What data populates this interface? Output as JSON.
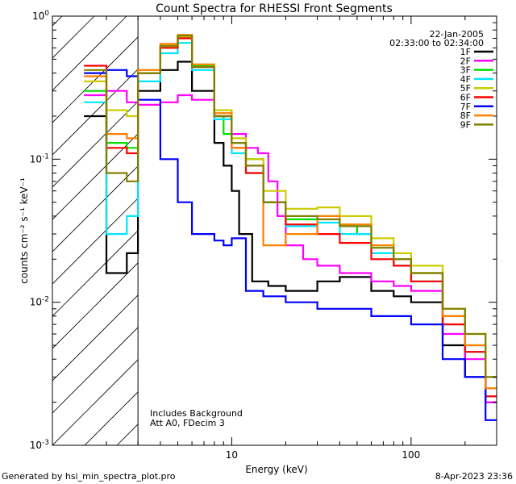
{
  "chart_data": {
    "type": "line",
    "title": "Count Spectra for RHESSI Front Segments",
    "xlabel": "Energy (keV)",
    "ylabel": "counts cm⁻² s⁻¹ keV⁻¹",
    "x_scale": "log",
    "y_scale": "log",
    "xlim": [
      1.0,
      300
    ],
    "ylim": [
      0.001,
      1.0
    ],
    "x_ticks": [
      {
        "value": 10,
        "label": "10"
      },
      {
        "value": 100,
        "label": "100"
      }
    ],
    "y_ticks": [
      {
        "value": 0.001,
        "base": "10",
        "exp": "-3"
      },
      {
        "value": 0.01,
        "base": "10",
        "exp": "-2"
      },
      {
        "value": 0.1,
        "base": "10",
        "exp": "-1"
      },
      {
        "value": 1,
        "base": "10",
        "exp": "0"
      }
    ],
    "grid": false,
    "legend_position": "top-right",
    "date": "22-Jan-2005",
    "time_range": "02:33:00 to 02:34:00",
    "shaded_region": {
      "from": 1.0,
      "to": 3.0,
      "style": "hatched"
    },
    "annotations": [
      "Includes Background",
      "Att A0, FDecim 3"
    ],
    "series": [
      {
        "name": "1F",
        "color": "#000000",
        "points": [
          [
            1.5,
            0.2
          ],
          [
            2,
            0.016
          ],
          [
            2.6,
            0.022
          ],
          [
            3,
            0.3
          ],
          [
            4,
            0.42
          ],
          [
            5,
            0.48
          ],
          [
            6,
            0.3
          ],
          [
            8,
            0.13
          ],
          [
            9,
            0.09
          ],
          [
            10,
            0.06
          ],
          [
            11,
            0.03
          ],
          [
            13,
            0.014
          ],
          [
            16,
            0.013
          ],
          [
            20,
            0.012
          ],
          [
            30,
            0.014
          ],
          [
            40,
            0.015
          ],
          [
            60,
            0.012
          ],
          [
            80,
            0.011
          ],
          [
            100,
            0.01
          ],
          [
            150,
            0.005
          ],
          [
            200,
            0.003
          ],
          [
            260,
            0.002
          ]
        ]
      },
      {
        "name": "2F",
        "color": "#ff00ff",
        "points": [
          [
            1.5,
            0.28
          ],
          [
            2,
            0.3
          ],
          [
            2.6,
            0.25
          ],
          [
            3,
            0.24
          ],
          [
            4,
            0.25
          ],
          [
            5,
            0.28
          ],
          [
            6,
            0.26
          ],
          [
            8,
            0.2
          ],
          [
            10,
            0.15
          ],
          [
            12,
            0.12
          ],
          [
            14,
            0.11
          ],
          [
            16,
            0.07
          ],
          [
            18,
            0.04
          ],
          [
            20,
            0.025
          ],
          [
            25,
            0.02
          ],
          [
            30,
            0.018
          ],
          [
            40,
            0.016
          ],
          [
            50,
            0.016
          ],
          [
            60,
            0.014
          ],
          [
            80,
            0.013
          ],
          [
            100,
            0.012
          ],
          [
            150,
            0.006
          ],
          [
            200,
            0.004
          ],
          [
            260,
            0.002
          ]
        ]
      },
      {
        "name": "3F",
        "color": "#00e000",
        "points": [
          [
            1.5,
            0.3
          ],
          [
            2,
            0.13
          ],
          [
            2.6,
            0.12
          ],
          [
            3,
            0.4
          ],
          [
            4,
            0.6
          ],
          [
            5,
            0.72
          ],
          [
            6,
            0.45
          ],
          [
            8,
            0.2
          ],
          [
            9,
            0.15
          ],
          [
            10,
            0.13
          ],
          [
            12,
            0.1
          ],
          [
            15,
            0.05
          ],
          [
            20,
            0.038
          ],
          [
            30,
            0.04
          ],
          [
            40,
            0.035
          ],
          [
            50,
            0.03
          ],
          [
            60,
            0.025
          ],
          [
            80,
            0.02
          ],
          [
            100,
            0.016
          ],
          [
            150,
            0.008
          ],
          [
            200,
            0.005
          ],
          [
            260,
            0.0025
          ]
        ]
      },
      {
        "name": "4F",
        "color": "#00e5ff",
        "points": [
          [
            1.5,
            0.25
          ],
          [
            2,
            0.03
          ],
          [
            2.6,
            0.04
          ],
          [
            3,
            0.35
          ],
          [
            4,
            0.55
          ],
          [
            5,
            0.65
          ],
          [
            6,
            0.42
          ],
          [
            8,
            0.19
          ],
          [
            10,
            0.11
          ],
          [
            12,
            0.08
          ],
          [
            15,
            0.05
          ],
          [
            20,
            0.034
          ],
          [
            30,
            0.036
          ],
          [
            40,
            0.03
          ],
          [
            60,
            0.022
          ],
          [
            80,
            0.018
          ],
          [
            100,
            0.014
          ],
          [
            150,
            0.007
          ],
          [
            200,
            0.0045
          ],
          [
            260,
            0.0022
          ]
        ]
      },
      {
        "name": "5F",
        "color": "#cccc00",
        "points": [
          [
            1.5,
            0.35
          ],
          [
            2,
            0.22
          ],
          [
            2.6,
            0.2
          ],
          [
            3,
            0.42
          ],
          [
            4,
            0.62
          ],
          [
            5,
            0.72
          ],
          [
            6,
            0.46
          ],
          [
            8,
            0.22
          ],
          [
            10,
            0.14
          ],
          [
            12,
            0.1
          ],
          [
            15,
            0.06
          ],
          [
            20,
            0.045
          ],
          [
            30,
            0.046
          ],
          [
            40,
            0.04
          ],
          [
            60,
            0.028
          ],
          [
            80,
            0.022
          ],
          [
            100,
            0.018
          ],
          [
            150,
            0.009
          ],
          [
            200,
            0.006
          ],
          [
            260,
            0.003
          ]
        ]
      },
      {
        "name": "6F",
        "color": "#ff0000",
        "points": [
          [
            1.5,
            0.45
          ],
          [
            2,
            0.12
          ],
          [
            2.6,
            0.11
          ],
          [
            3,
            0.4
          ],
          [
            4,
            0.6
          ],
          [
            5,
            0.7
          ],
          [
            6,
            0.44
          ],
          [
            8,
            0.2
          ],
          [
            10,
            0.12
          ],
          [
            12,
            0.08
          ],
          [
            15,
            0.05
          ],
          [
            20,
            0.035
          ],
          [
            30,
            0.03
          ],
          [
            40,
            0.026
          ],
          [
            60,
            0.02
          ],
          [
            80,
            0.018
          ],
          [
            100,
            0.014
          ],
          [
            150,
            0.007
          ],
          [
            200,
            0.0045
          ],
          [
            260,
            0.0022
          ]
        ]
      },
      {
        "name": "7F",
        "color": "#0000ff",
        "points": [
          [
            1.5,
            0.4
          ],
          [
            2,
            0.42
          ],
          [
            2.6,
            0.38
          ],
          [
            3,
            0.26
          ],
          [
            4,
            0.1
          ],
          [
            5,
            0.05
          ],
          [
            6,
            0.03
          ],
          [
            8,
            0.027
          ],
          [
            9,
            0.025
          ],
          [
            10,
            0.028
          ],
          [
            12,
            0.012
          ],
          [
            15,
            0.011
          ],
          [
            20,
            0.01
          ],
          [
            30,
            0.009
          ],
          [
            40,
            0.009
          ],
          [
            60,
            0.008
          ],
          [
            80,
            0.008
          ],
          [
            100,
            0.007
          ],
          [
            150,
            0.004
          ],
          [
            200,
            0.003
          ],
          [
            260,
            0.0015
          ]
        ]
      },
      {
        "name": "8F",
        "color": "#ff8000",
        "points": [
          [
            1.5,
            0.38
          ],
          [
            2,
            0.15
          ],
          [
            2.6,
            0.14
          ],
          [
            3,
            0.42
          ],
          [
            4,
            0.64
          ],
          [
            5,
            0.74
          ],
          [
            6,
            0.46
          ],
          [
            8,
            0.21
          ],
          [
            10,
            0.12
          ],
          [
            12,
            0.09
          ],
          [
            15,
            0.025
          ],
          [
            20,
            0.03
          ],
          [
            30,
            0.04
          ],
          [
            40,
            0.035
          ],
          [
            60,
            0.025
          ],
          [
            80,
            0.02
          ],
          [
            100,
            0.016
          ],
          [
            150,
            0.008
          ],
          [
            200,
            0.005
          ],
          [
            260,
            0.0025
          ]
        ]
      },
      {
        "name": "9F",
        "color": "#808000",
        "points": [
          [
            1.5,
            0.42
          ],
          [
            2,
            0.08
          ],
          [
            2.6,
            0.07
          ],
          [
            3,
            0.4
          ],
          [
            4,
            0.62
          ],
          [
            5,
            0.73
          ],
          [
            6,
            0.44
          ],
          [
            8,
            0.2
          ],
          [
            10,
            0.13
          ],
          [
            12,
            0.09
          ],
          [
            15,
            0.05
          ],
          [
            20,
            0.04
          ],
          [
            30,
            0.038
          ],
          [
            40,
            0.034
          ],
          [
            60,
            0.024
          ],
          [
            80,
            0.02
          ],
          [
            100,
            0.016
          ],
          [
            150,
            0.009
          ],
          [
            200,
            0.006
          ],
          [
            260,
            0.003
          ]
        ]
      }
    ]
  },
  "footer": {
    "left": "Generated by hsi_min_spectra_plot.pro",
    "right": "8-Apr-2023 23:36"
  }
}
